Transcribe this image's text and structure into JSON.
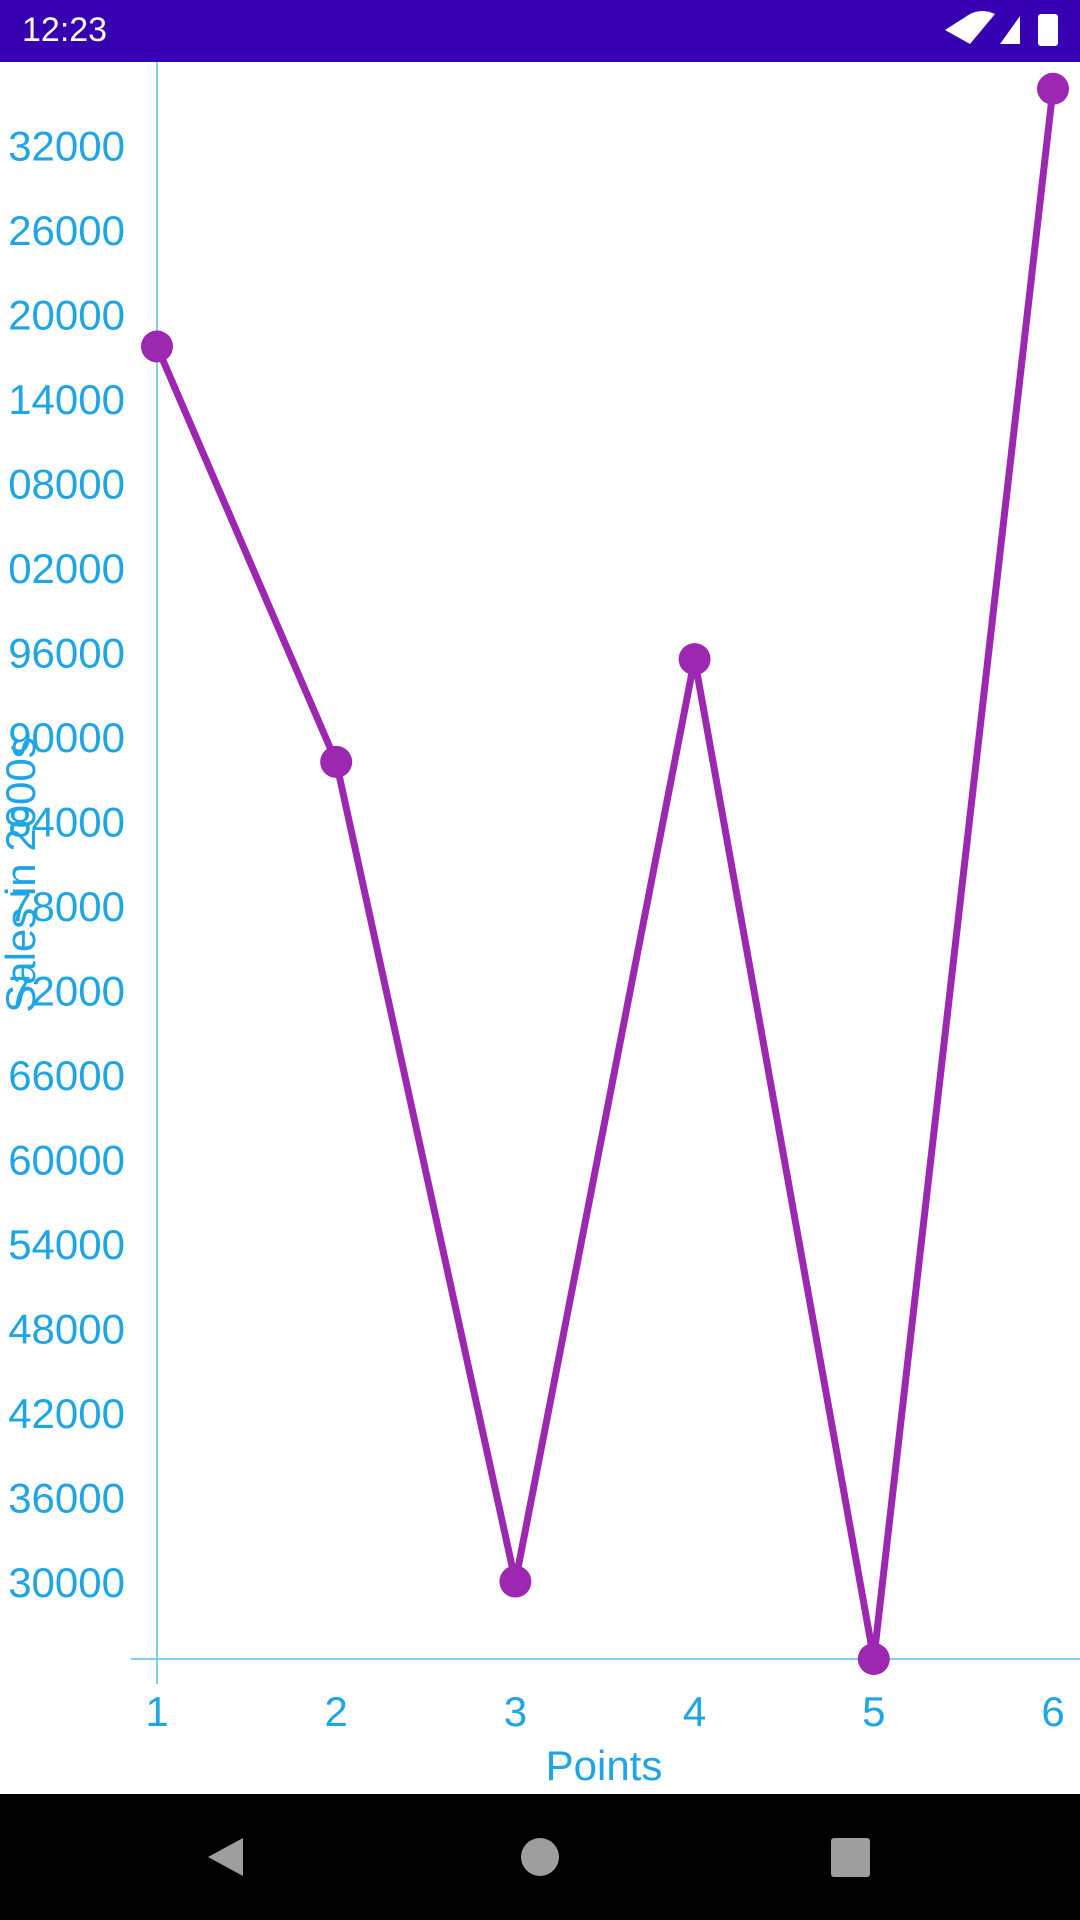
{
  "status_bar": {
    "time": "12:23"
  },
  "chart_data": {
    "type": "line",
    "x": [
      1,
      2,
      3,
      4,
      5,
      6
    ],
    "values": [
      118000,
      88500,
      30300,
      95800,
      24800,
      136300
    ],
    "color": "#9c27b0",
    "xlim": [
      1,
      6
    ],
    "xticks": [
      1,
      2,
      3,
      4,
      5,
      6
    ],
    "ylim": [
      24800,
      138200
    ],
    "yticks": [
      30000,
      36000,
      42000,
      48000,
      54000,
      60000,
      66000,
      72000,
      78000,
      84000,
      90000,
      96000,
      {
        "value": 102000,
        "label": "02000"
      },
      {
        "value": 108000,
        "label": "08000"
      },
      {
        "value": 114000,
        "label": "14000"
      },
      {
        "value": 120000,
        "label": "20000"
      },
      {
        "value": 126000,
        "label": "26000"
      },
      {
        "value": 132000,
        "label": "32000"
      }
    ],
    "xlabel": "Points",
    "ylabel": "Sales in 2000s"
  }
}
